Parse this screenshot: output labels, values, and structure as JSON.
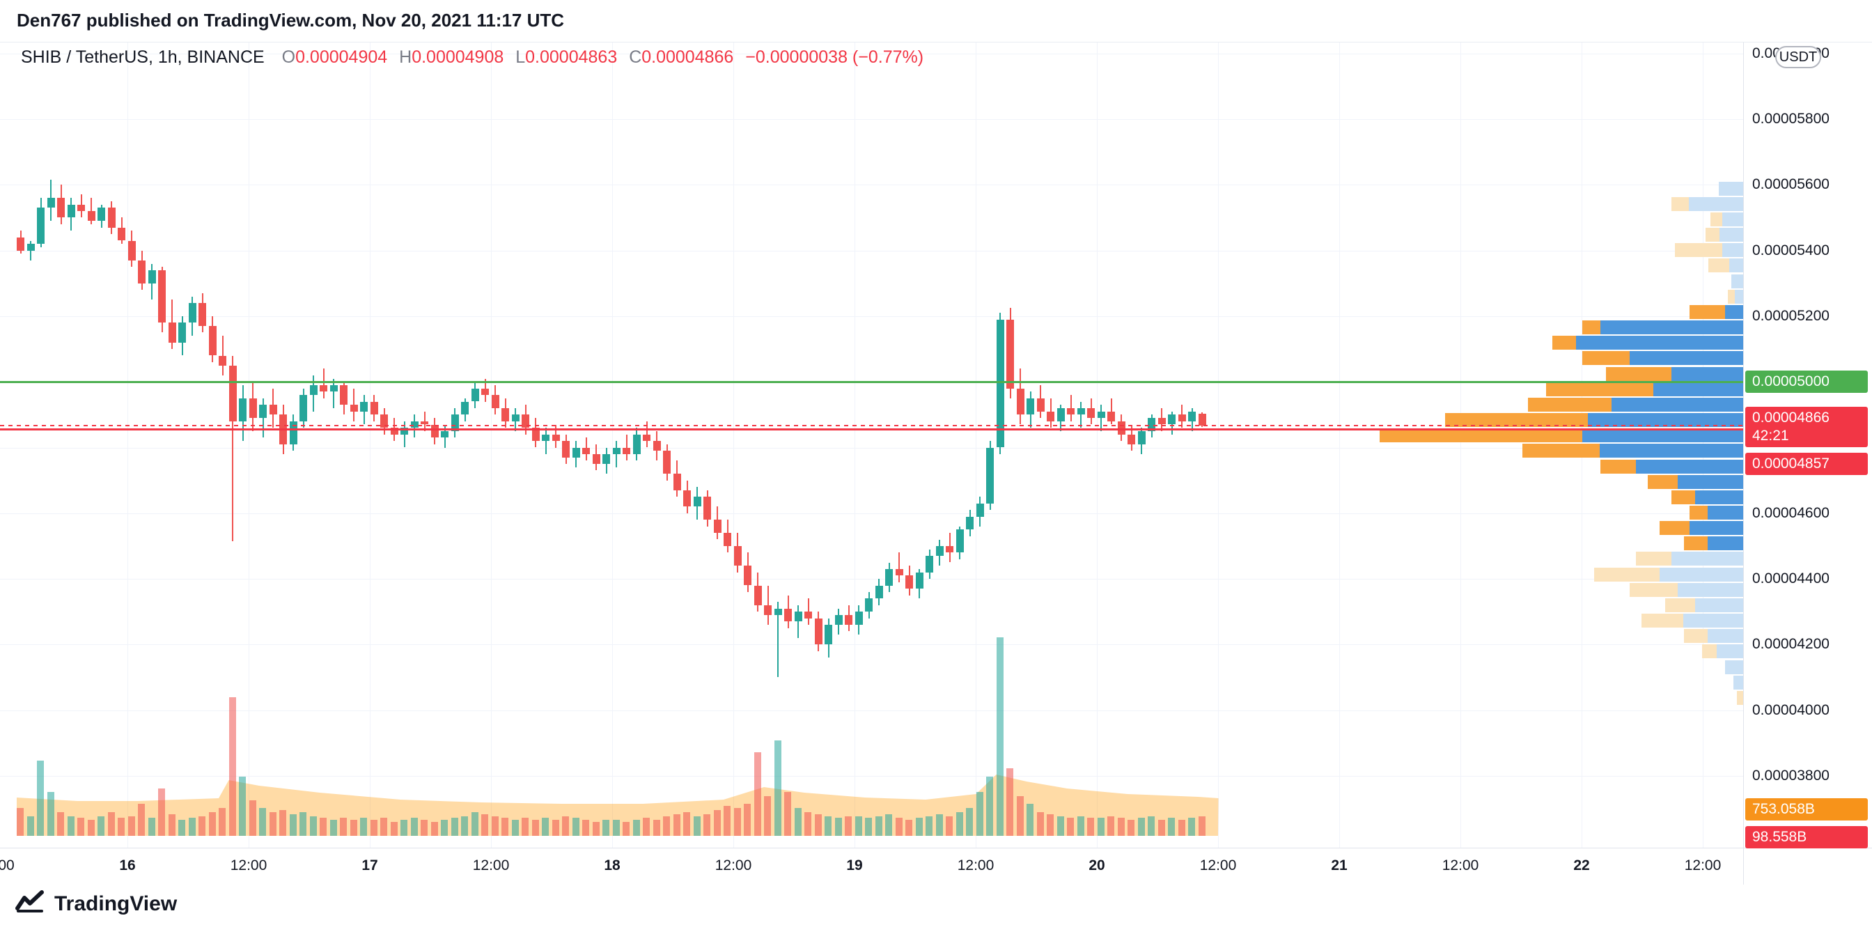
{
  "header": {
    "published_line": "Den767 published on TradingView.com, Nov 20, 2021 11:17 UTC"
  },
  "legend": {
    "symbol": "SHIB / TetherUS, 1h, BINANCE",
    "items": [
      {
        "k": "O",
        "v": "0.00004904"
      },
      {
        "k": "H",
        "v": "0.00004908"
      },
      {
        "k": "L",
        "v": "0.00004863"
      },
      {
        "k": "C",
        "v": "0.00004866"
      }
    ],
    "change": "−0.00000038 (−0.77%)"
  },
  "axis_right": {
    "currency_button": "USDT",
    "top_label": {
      "text": "0.00006000",
      "p": 6000
    },
    "labels": [
      {
        "text": "0.00005800",
        "p": 5800
      },
      {
        "text": "0.00005600",
        "p": 5600
      },
      {
        "text": "0.00005400",
        "p": 5400
      },
      {
        "text": "0.00005200",
        "p": 5200
      },
      {
        "text": "0.00004600",
        "p": 4600
      },
      {
        "text": "0.00004400",
        "p": 4400
      },
      {
        "text": "0.00004200",
        "p": 4200
      },
      {
        "text": "0.00004000",
        "p": 4000
      },
      {
        "text": "0.00003800",
        "p": 3800
      }
    ],
    "green_label": "0.00005000",
    "current_label": "0.00004866",
    "countdown": "42:21",
    "alert_label": "0.00004857",
    "volume_ma_label": "753.058B",
    "volume_label": "98.558B"
  },
  "axis_time": {
    "labels": [
      {
        "text": "00",
        "x": 9,
        "day": false
      },
      {
        "text": "16",
        "x": 183,
        "day": true
      },
      {
        "text": "12:00",
        "x": 357,
        "day": false
      },
      {
        "text": "17",
        "x": 531,
        "day": true
      },
      {
        "text": "12:00",
        "x": 705,
        "day": false
      },
      {
        "text": "18",
        "x": 879,
        "day": true
      },
      {
        "text": "12:00",
        "x": 1053,
        "day": false
      },
      {
        "text": "19",
        "x": 1227,
        "day": true
      },
      {
        "text": "12:00",
        "x": 1401,
        "day": false
      },
      {
        "text": "20",
        "x": 1575,
        "day": true
      },
      {
        "text": "12:00",
        "x": 1749,
        "day": false
      },
      {
        "text": "21",
        "x": 1923,
        "day": true
      },
      {
        "text": "12:00",
        "x": 2097,
        "day": false
      },
      {
        "text": "22",
        "x": 2271,
        "day": true
      },
      {
        "text": "12:00",
        "x": 2445,
        "day": false
      }
    ]
  },
  "footer": {
    "logo_text": "TradingView"
  },
  "colors": {
    "up": "#26A69A",
    "down": "#EF5350",
    "vol_up": "rgba(38,166,154,0.55)",
    "vol_down": "rgba(239,83,80,0.55)",
    "accent_red": "#F23645",
    "accent_green": "#4CAF50",
    "accent_orange": "#F7931A",
    "vp_blue": "#4C96DC",
    "vp_blue_pale": "#C9E0F5",
    "vp_amber": "#F8A33C",
    "vp_amber_pale": "#FBE3BC",
    "vol_ma_fill": "rgba(255,152,0,0.35)"
  },
  "chart_data": {
    "type": "candlestick",
    "title": "SHIB / TetherUS, 1h, BINANCE",
    "interval": "1h",
    "start_time": "Nov 15 2021 13:00 UTC",
    "price_unit": "1e-8 USDT",
    "ylim": [
      3.58e-05,
      6.04e-05
    ],
    "x_visible_range": "Nov 15 12:00 — Nov 22 12:00",
    "grid": true,
    "ohlc_readout": {
      "open": 4.904e-05,
      "high": 4.908e-05,
      "low": 4.863e-05,
      "close": 4.866e-05,
      "change": -3.8e-07,
      "change_pct": -0.77
    },
    "lines": {
      "green_line_price": 5000,
      "alert_line_price": 4857,
      "current_price": 4866
    },
    "candles": [
      [
        5440,
        5460,
        5390,
        5400
      ],
      [
        5400,
        5430,
        5370,
        5420
      ],
      [
        5420,
        5560,
        5410,
        5530
      ],
      [
        5530,
        5615,
        5490,
        5560
      ],
      [
        5560,
        5600,
        5480,
        5500
      ],
      [
        5500,
        5560,
        5460,
        5540
      ],
      [
        5540,
        5570,
        5500,
        5520
      ],
      [
        5520,
        5560,
        5480,
        5490
      ],
      [
        5490,
        5540,
        5470,
        5530
      ],
      [
        5530,
        5550,
        5450,
        5470
      ],
      [
        5470,
        5500,
        5420,
        5430
      ],
      [
        5430,
        5460,
        5350,
        5370
      ],
      [
        5370,
        5400,
        5280,
        5300
      ],
      [
        5300,
        5360,
        5250,
        5340
      ],
      [
        5340,
        5350,
        5150,
        5180
      ],
      [
        5180,
        5250,
        5100,
        5120
      ],
      [
        5120,
        5200,
        5080,
        5180
      ],
      [
        5180,
        5260,
        5140,
        5240
      ],
      [
        5240,
        5270,
        5150,
        5170
      ],
      [
        5170,
        5200,
        5060,
        5080
      ],
      [
        5080,
        5140,
        5020,
        5050
      ],
      [
        5050,
        5080,
        4515,
        4880
      ],
      [
        4880,
        4990,
        4820,
        4950
      ],
      [
        4950,
        5000,
        4850,
        4890
      ],
      [
        4890,
        4950,
        4830,
        4930
      ],
      [
        4930,
        4980,
        4860,
        4900
      ],
      [
        4900,
        4930,
        4780,
        4810
      ],
      [
        4810,
        4900,
        4790,
        4880
      ],
      [
        4880,
        4980,
        4860,
        4960
      ],
      [
        4960,
        5020,
        4910,
        4990
      ],
      [
        4990,
        5040,
        4950,
        4970
      ],
      [
        4970,
        5010,
        4920,
        4990
      ],
      [
        4990,
        5000,
        4900,
        4930
      ],
      [
        4930,
        4980,
        4880,
        4910
      ],
      [
        4910,
        4960,
        4870,
        4940
      ],
      [
        4940,
        4960,
        4880,
        4900
      ],
      [
        4900,
        4920,
        4840,
        4860
      ],
      [
        4860,
        4890,
        4820,
        4840
      ],
      [
        4840,
        4880,
        4800,
        4860
      ],
      [
        4860,
        4900,
        4830,
        4880
      ],
      [
        4880,
        4910,
        4850,
        4870
      ],
      [
        4870,
        4890,
        4810,
        4830
      ],
      [
        4830,
        4870,
        4800,
        4850
      ],
      [
        4850,
        4920,
        4830,
        4900
      ],
      [
        4900,
        4950,
        4880,
        4940
      ],
      [
        4940,
        5000,
        4920,
        4980
      ],
      [
        4980,
        5010,
        4940,
        4960
      ],
      [
        4960,
        4990,
        4900,
        4920
      ],
      [
        4920,
        4950,
        4860,
        4880
      ],
      [
        4880,
        4920,
        4850,
        4900
      ],
      [
        4900,
        4930,
        4840,
        4860
      ],
      [
        4860,
        4890,
        4800,
        4820
      ],
      [
        4820,
        4860,
        4780,
        4840
      ],
      [
        4840,
        4870,
        4800,
        4820
      ],
      [
        4820,
        4840,
        4750,
        4770
      ],
      [
        4770,
        4820,
        4740,
        4800
      ],
      [
        4800,
        4830,
        4760,
        4780
      ],
      [
        4780,
        4810,
        4730,
        4750
      ],
      [
        4750,
        4800,
        4720,
        4780
      ],
      [
        4780,
        4820,
        4740,
        4800
      ],
      [
        4800,
        4840,
        4760,
        4780
      ],
      [
        4780,
        4860,
        4760,
        4840
      ],
      [
        4840,
        4880,
        4800,
        4820
      ],
      [
        4820,
        4850,
        4760,
        4790
      ],
      [
        4790,
        4810,
        4700,
        4720
      ],
      [
        4720,
        4760,
        4650,
        4670
      ],
      [
        4670,
        4700,
        4600,
        4620
      ],
      [
        4620,
        4680,
        4580,
        4650
      ],
      [
        4650,
        4670,
        4560,
        4580
      ],
      [
        4580,
        4620,
        4520,
        4540
      ],
      [
        4540,
        4580,
        4480,
        4500
      ],
      [
        4500,
        4540,
        4420,
        4440
      ],
      [
        4440,
        4480,
        4360,
        4380
      ],
      [
        4380,
        4420,
        4300,
        4320
      ],
      [
        4320,
        4380,
        4260,
        4290
      ],
      [
        4290,
        4330,
        4100,
        4310
      ],
      [
        4310,
        4350,
        4250,
        4270
      ],
      [
        4270,
        4320,
        4220,
        4300
      ],
      [
        4300,
        4340,
        4260,
        4280
      ],
      [
        4280,
        4300,
        4180,
        4200
      ],
      [
        4200,
        4280,
        4160,
        4260
      ],
      [
        4260,
        4310,
        4230,
        4290
      ],
      [
        4290,
        4320,
        4240,
        4260
      ],
      [
        4260,
        4320,
        4230,
        4300
      ],
      [
        4300,
        4360,
        4280,
        4340
      ],
      [
        4340,
        4400,
        4320,
        4380
      ],
      [
        4380,
        4450,
        4360,
        4430
      ],
      [
        4430,
        4480,
        4390,
        4410
      ],
      [
        4410,
        4440,
        4350,
        4370
      ],
      [
        4370,
        4430,
        4340,
        4420
      ],
      [
        4420,
        4490,
        4400,
        4470
      ],
      [
        4470,
        4520,
        4440,
        4500
      ],
      [
        4500,
        4540,
        4450,
        4480
      ],
      [
        4480,
        4560,
        4460,
        4550
      ],
      [
        4550,
        4610,
        4530,
        4590
      ],
      [
        4590,
        4650,
        4560,
        4630
      ],
      [
        4630,
        4820,
        4610,
        4800
      ],
      [
        4800,
        5210,
        4780,
        5190
      ],
      [
        5190,
        5225,
        4950,
        4980
      ],
      [
        4980,
        5040,
        4870,
        4900
      ],
      [
        4900,
        4970,
        4860,
        4950
      ],
      [
        4950,
        4990,
        4890,
        4910
      ],
      [
        4910,
        4950,
        4860,
        4880
      ],
      [
        4880,
        4930,
        4850,
        4920
      ],
      [
        4920,
        4960,
        4880,
        4900
      ],
      [
        4900,
        4940,
        4860,
        4920
      ],
      [
        4920,
        4950,
        4870,
        4890
      ],
      [
        4890,
        4930,
        4850,
        4910
      ],
      [
        4910,
        4950,
        4870,
        4880
      ],
      [
        4880,
        4900,
        4820,
        4840
      ],
      [
        4840,
        4870,
        4790,
        4810
      ],
      [
        4810,
        4860,
        4780,
        4850
      ],
      [
        4850,
        4900,
        4830,
        4890
      ],
      [
        4890,
        4920,
        4850,
        4870
      ],
      [
        4870,
        4910,
        4840,
        4900
      ],
      [
        4900,
        4930,
        4860,
        4880
      ],
      [
        4880,
        4920,
        4850,
        4910
      ],
      [
        4904,
        4908,
        4863,
        4866
      ]
    ],
    "volumes": [
      14,
      10,
      38,
      22,
      12,
      10,
      9,
      8,
      10,
      12,
      9,
      10,
      16,
      9,
      24,
      11,
      8,
      9,
      10,
      12,
      14,
      70,
      30,
      18,
      14,
      12,
      13,
      11,
      12,
      10,
      9,
      8,
      9,
      8,
      9,
      8,
      9,
      7,
      8,
      9,
      8,
      7,
      8,
      9,
      10,
      12,
      11,
      10,
      9,
      8,
      9,
      8,
      9,
      8,
      10,
      9,
      8,
      7,
      8,
      8,
      7,
      8,
      9,
      8,
      10,
      11,
      12,
      10,
      11,
      13,
      15,
      14,
      16,
      42,
      20,
      48,
      22,
      14,
      12,
      11,
      10,
      9,
      10,
      10,
      9,
      10,
      11,
      9,
      8,
      9,
      10,
      11,
      10,
      12,
      14,
      22,
      30,
      100,
      34,
      20,
      16,
      12,
      11,
      10,
      9,
      10,
      9,
      9,
      10,
      9,
      8,
      9,
      10,
      8,
      9,
      8,
      9,
      10
    ],
    "volume_ma": [
      [
        0,
        55
      ],
      [
        6,
        50
      ],
      [
        12,
        50
      ],
      [
        20,
        54
      ],
      [
        21,
        80
      ],
      [
        24,
        72
      ],
      [
        30,
        62
      ],
      [
        38,
        52
      ],
      [
        46,
        48
      ],
      [
        54,
        46
      ],
      [
        62,
        46
      ],
      [
        70,
        52
      ],
      [
        74,
        70
      ],
      [
        78,
        62
      ],
      [
        84,
        55
      ],
      [
        90,
        52
      ],
      [
        95,
        60
      ],
      [
        97,
        88
      ],
      [
        100,
        78
      ],
      [
        104,
        68
      ],
      [
        110,
        60
      ],
      [
        117,
        56
      ],
      [
        119,
        54
      ]
    ],
    "volume_profile": {
      "rows": [
        [
          5610,
          0,
          35,
          1
        ],
        [
          5563,
          25,
          78,
          1
        ],
        [
          5516,
          17,
          30,
          1
        ],
        [
          5469,
          20,
          34,
          1
        ],
        [
          5422,
          68,
          30,
          1
        ],
        [
          5375,
          30,
          20,
          1
        ],
        [
          5328,
          0,
          17,
          1
        ],
        [
          5281,
          10,
          12,
          1
        ],
        [
          5234,
          51,
          26,
          0
        ],
        [
          5187,
          26,
          205,
          0
        ],
        [
          5140,
          34,
          240,
          0
        ],
        [
          5093,
          68,
          163,
          0
        ],
        [
          5046,
          94,
          103,
          0
        ],
        [
          4999,
          154,
          129,
          0
        ],
        [
          4952,
          120,
          189,
          0
        ],
        [
          4905,
          205,
          223,
          0
        ],
        [
          4858,
          291,
          231,
          0
        ],
        [
          4811,
          111,
          206,
          0
        ],
        [
          4764,
          51,
          154,
          0
        ],
        [
          4717,
          43,
          94,
          0
        ],
        [
          4670,
          34,
          69,
          0
        ],
        [
          4623,
          26,
          51,
          0
        ],
        [
          4576,
          43,
          77,
          0
        ],
        [
          4529,
          34,
          51,
          0
        ],
        [
          4482,
          51,
          103,
          1
        ],
        [
          4435,
          94,
          120,
          1
        ],
        [
          4388,
          69,
          94,
          1
        ],
        [
          4341,
          43,
          69,
          1
        ],
        [
          4294,
          60,
          86,
          1
        ],
        [
          4247,
          34,
          51,
          1
        ],
        [
          4200,
          21,
          38,
          1
        ],
        [
          4153,
          0,
          26,
          1
        ],
        [
          4106,
          0,
          14,
          1
        ],
        [
          4059,
          9,
          0,
          1
        ]
      ],
      "row_format": "[price_1e-8, amber_width_px, blue_width_px, pale_flag]"
    }
  }
}
